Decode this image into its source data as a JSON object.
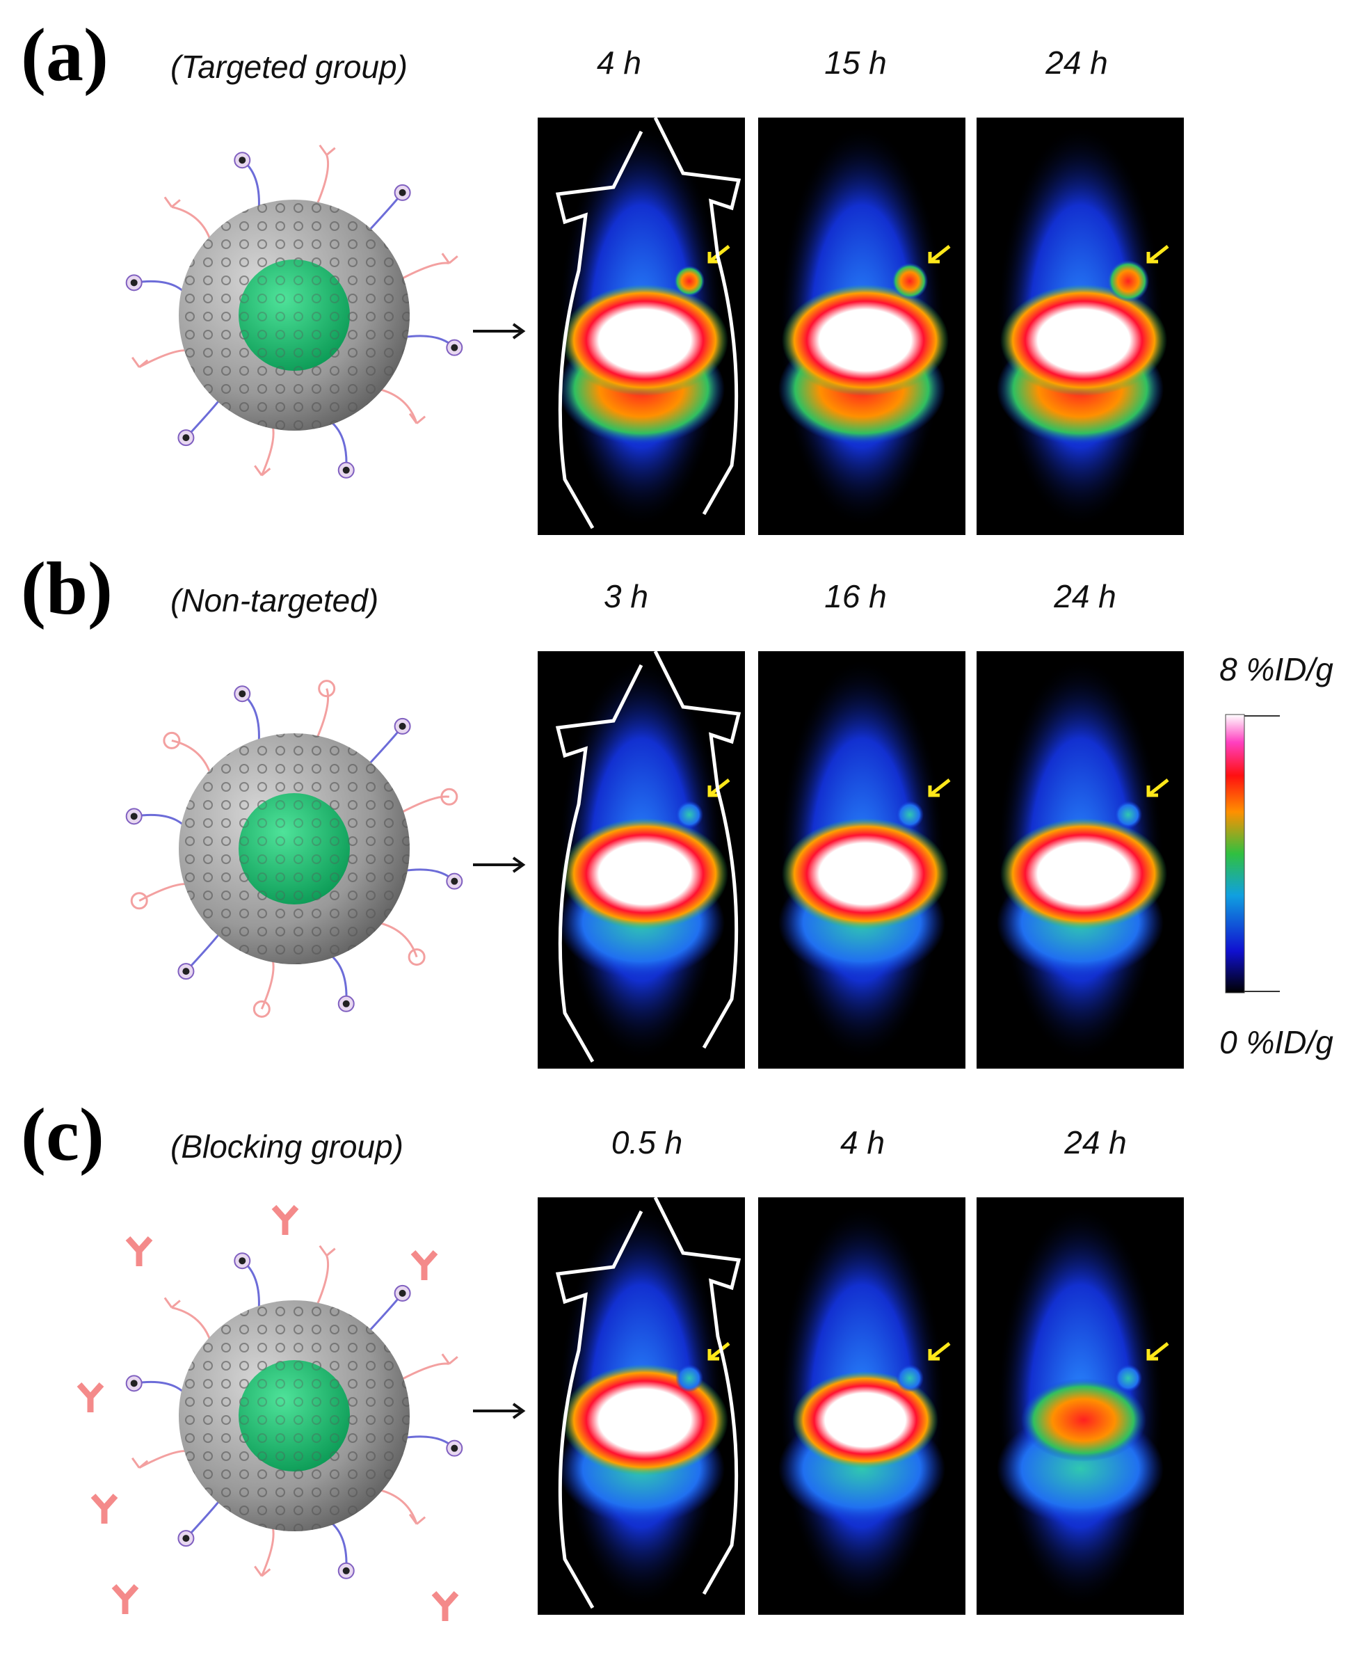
{
  "panels": [
    {
      "label": "(a)",
      "group": "(Targeted group)",
      "times": [
        "4 h",
        "15 h",
        "24 h"
      ]
    },
    {
      "label": "(b)",
      "group": "(Non-targeted)",
      "times": [
        "3 h",
        "16 h",
        "24 h"
      ]
    },
    {
      "label": "(c)",
      "group": "(Blocking group)",
      "times": [
        "0.5 h",
        "4 h",
        "24 h"
      ]
    }
  ],
  "colorbar": {
    "max": "8 %ID/g",
    "min": "0 %ID/g"
  }
}
